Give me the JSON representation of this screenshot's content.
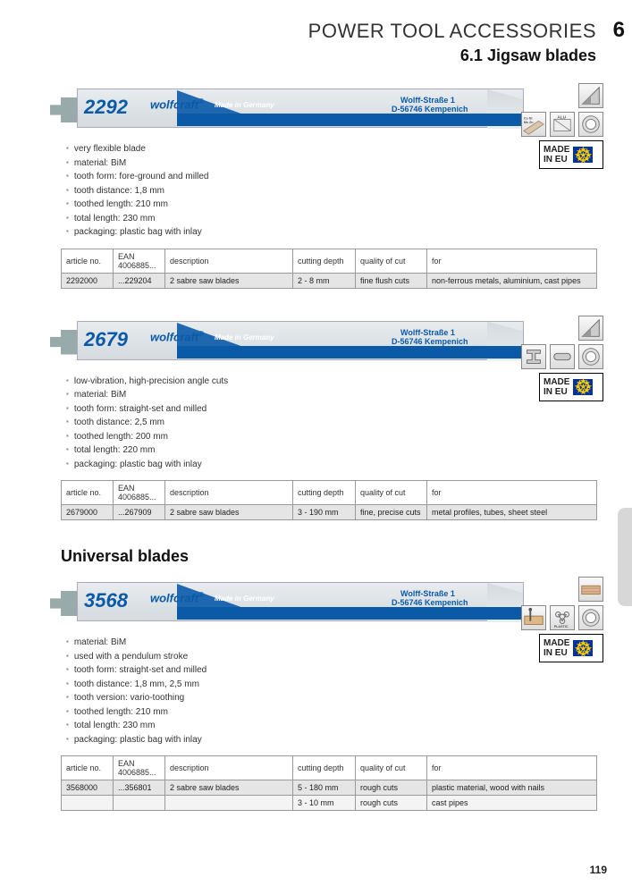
{
  "header": {
    "category": "POWER TOOL ACCESSORIES",
    "chapter_num": "6",
    "subcategory": "6.1 Jigsaw blades"
  },
  "universal_title": "Universal blades",
  "page_number": "119",
  "blade_brand": "wolfcraft",
  "blade_made": "Made in Germany",
  "blade_addr1": "Wolff-Straße 1",
  "blade_addr2": "D-56746 Kempenich",
  "made_in_eu": "MADE IN EU",
  "table_headers": {
    "article": "article no.",
    "ean": "EAN 4006885...",
    "desc": "description",
    "depth": "cutting depth",
    "quality": "quality of cut",
    "for": "for"
  },
  "products": [
    {
      "number": "2292",
      "specs": [
        "very flexible blade",
        "material: BiM",
        "tooth form: fore-ground and milled",
        "tooth distance: 1,8 mm",
        "toothed length: 210 mm",
        "total length: 230 mm",
        "packaging: plastic bag with inlay"
      ],
      "icons_row1": [
        "angle"
      ],
      "icons_row2": [
        "cunizn",
        "alu",
        "pipe"
      ],
      "rows": [
        {
          "article": "2292000",
          "ean": "...229204",
          "desc": "2 sabre saw blades",
          "depth": "2 - 8 mm",
          "quality": "fine flush cuts",
          "for": "non-ferrous metals, aluminium, cast pipes"
        }
      ]
    },
    {
      "number": "2679",
      "specs": [
        "low-vibration, high-precision angle cuts",
        "material: BiM",
        "tooth form: straight-set and milled",
        "tooth distance: 2,5 mm",
        "toothed length: 200 mm",
        "total length: 220 mm",
        "packaging: plastic bag with inlay"
      ],
      "icons_row1": [
        "angle"
      ],
      "icons_row2": [
        "ibeam",
        "tube",
        "pipe"
      ],
      "rows": [
        {
          "article": "2679000",
          "ean": "...267909",
          "desc": "2 sabre saw blades",
          "depth": "3 - 190 mm",
          "quality": "fine, precise cuts",
          "for": "metal profiles, tubes, sheet steel"
        }
      ]
    },
    {
      "number": "3568",
      "specs": [
        "material: BiM",
        "used with a pendulum stroke",
        "tooth form: straight-set and milled",
        "tooth distance: 1,8 mm, 2,5 mm",
        "tooth version: vario-toothing",
        "toothed length: 210 mm",
        "total length: 230 mm",
        "packaging: plastic bag with inlay"
      ],
      "icons_row1": [
        "wood"
      ],
      "icons_row2": [
        "nailwood",
        "plastic",
        "pipe"
      ],
      "rows": [
        {
          "article": "3568000",
          "ean": "...356801",
          "desc": "2 sabre saw blades",
          "depth": "5 - 180 mm",
          "quality": "rough cuts",
          "for": "plastic material, wood with nails"
        },
        {
          "article": "",
          "ean": "",
          "desc": "",
          "depth": "3 - 10 mm",
          "quality": "rough cuts",
          "for": "cast pipes"
        }
      ]
    }
  ]
}
